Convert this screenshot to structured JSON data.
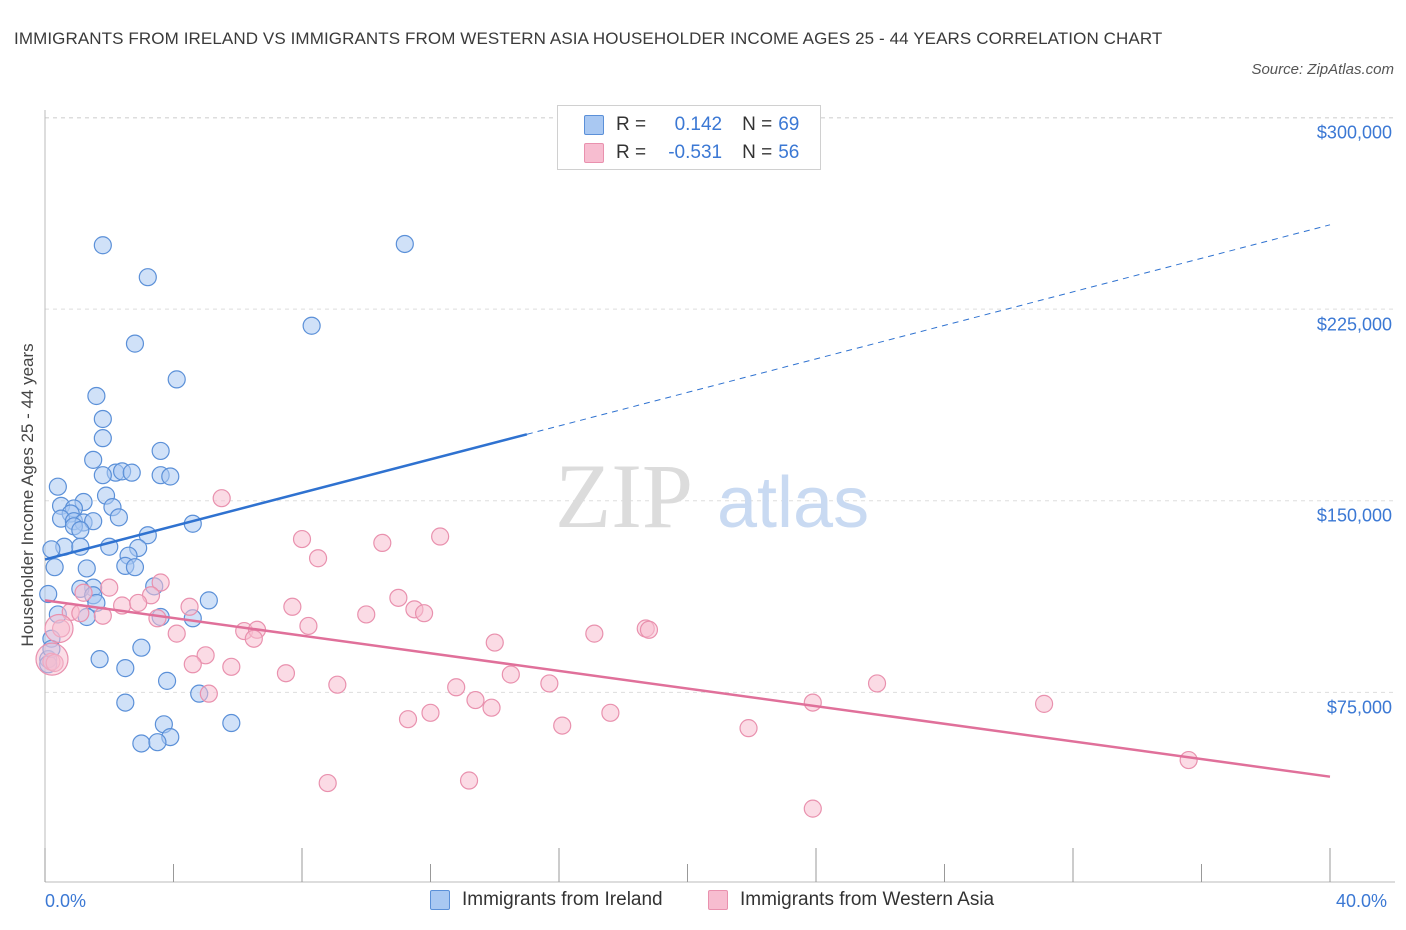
{
  "title": "IMMIGRANTS FROM IRELAND VS IMMIGRANTS FROM WESTERN ASIA HOUSEHOLDER INCOME AGES 25 - 44 YEARS CORRELATION CHART",
  "source": "Source: ZipAtlas.com",
  "watermark": {
    "zip": "ZIP",
    "atlas": "atlas"
  },
  "colors": {
    "blue_fill": "#a9c8f2",
    "blue_stroke": "#5b90d8",
    "blue_line": "#2f72d0",
    "pink_fill": "#f7bdd0",
    "pink_stroke": "#e991ae",
    "pink_line": "#e0709a",
    "accent_text": "#3b78d4",
    "grid": "#dddddd"
  },
  "legend": {
    "rows": [
      {
        "r_label": "R =",
        "r_value": "0.142",
        "n_label": "N =",
        "n_value": "69"
      },
      {
        "r_label": "R =",
        "r_value": "-0.531",
        "n_label": "N =",
        "n_value": "56"
      }
    ]
  },
  "bottom_legend": [
    "Immigrants from Ireland",
    "Immigrants from Western Asia"
  ],
  "chart_data": {
    "type": "scatter",
    "ylabel": "Householder Income Ages 25 - 44 years",
    "xlabel": "",
    "x_tick_labels": [
      "0.0%",
      "40.0%"
    ],
    "y_tick_labels": [
      "$300,000",
      "$225,000",
      "$150,000",
      "$75,000"
    ],
    "y_ticks": [
      300000,
      225000,
      150000,
      75000
    ],
    "xlim": [
      0,
      40
    ],
    "ylim": [
      0,
      305000
    ],
    "grid": true,
    "legend_position": "top-center",
    "series": [
      {
        "name": "Immigrants from Ireland",
        "color": "#a9c8f2",
        "trend": {
          "x": [
            0.0,
            15.0
          ],
          "y": [
            127000,
            176000
          ],
          "dashed_to": [
            40.0,
            258000
          ]
        },
        "points": [
          [
            1.8,
            250000
          ],
          [
            11.2,
            250500
          ],
          [
            3.2,
            237500
          ],
          [
            2.8,
            211500
          ],
          [
            8.3,
            218500
          ],
          [
            4.1,
            197500
          ],
          [
            1.6,
            191000
          ],
          [
            1.8,
            182000
          ],
          [
            1.8,
            174500
          ],
          [
            3.6,
            169500
          ],
          [
            1.5,
            166000
          ],
          [
            2.2,
            161000
          ],
          [
            2.4,
            161500
          ],
          [
            2.7,
            161000
          ],
          [
            3.6,
            160000
          ],
          [
            3.9,
            159500
          ],
          [
            1.8,
            160000
          ],
          [
            0.4,
            155500
          ],
          [
            1.9,
            152000
          ],
          [
            1.2,
            149500
          ],
          [
            0.5,
            148000
          ],
          [
            0.9,
            147000
          ],
          [
            2.1,
            147500
          ],
          [
            0.8,
            145000
          ],
          [
            2.3,
            143500
          ],
          [
            0.5,
            143000
          ],
          [
            0.9,
            142000
          ],
          [
            1.2,
            141500
          ],
          [
            1.5,
            142000
          ],
          [
            0.9,
            140000
          ],
          [
            1.1,
            138500
          ],
          [
            4.6,
            141000
          ],
          [
            3.2,
            136500
          ],
          [
            0.6,
            132000
          ],
          [
            1.1,
            132000
          ],
          [
            0.2,
            131000
          ],
          [
            2.0,
            132000
          ],
          [
            2.9,
            131500
          ],
          [
            2.6,
            128500
          ],
          [
            0.3,
            124000
          ],
          [
            1.3,
            123500
          ],
          [
            2.5,
            124500
          ],
          [
            2.8,
            124000
          ],
          [
            1.5,
            116000
          ],
          [
            3.4,
            116500
          ],
          [
            1.1,
            115500
          ],
          [
            0.1,
            113500
          ],
          [
            1.5,
            113000
          ],
          [
            1.6,
            110000
          ],
          [
            5.1,
            111000
          ],
          [
            0.4,
            105500
          ],
          [
            1.3,
            104500
          ],
          [
            3.6,
            104500
          ],
          [
            4.6,
            104000
          ],
          [
            0.2,
            96000
          ],
          [
            3.0,
            92500
          ],
          [
            0.1,
            88000
          ],
          [
            1.7,
            88000
          ],
          [
            2.5,
            84500
          ],
          [
            3.8,
            79500
          ],
          [
            4.8,
            74500
          ],
          [
            2.5,
            71000
          ],
          [
            3.7,
            62500
          ],
          [
            5.8,
            63000
          ],
          [
            3.9,
            57500
          ],
          [
            3.0,
            55000
          ],
          [
            3.5,
            55500
          ],
          [
            0.1,
            86000
          ],
          [
            0.2,
            92000
          ]
        ]
      },
      {
        "name": "Immigrants from Western Asia",
        "color": "#f7bdd0",
        "trend": {
          "x": [
            0.0,
            40.0
          ],
          "y": [
            111000,
            42000
          ]
        },
        "points": [
          [
            5.5,
            151000
          ],
          [
            8.0,
            135000
          ],
          [
            10.5,
            133500
          ],
          [
            12.3,
            136000
          ],
          [
            8.5,
            127500
          ],
          [
            3.6,
            118000
          ],
          [
            2.0,
            116000
          ],
          [
            1.2,
            114000
          ],
          [
            3.3,
            113000
          ],
          [
            11.0,
            112000
          ],
          [
            2.4,
            109000
          ],
          [
            2.9,
            110000
          ],
          [
            4.5,
            108500
          ],
          [
            7.7,
            108500
          ],
          [
            11.5,
            107500
          ],
          [
            0.8,
            106500
          ],
          [
            1.1,
            106000
          ],
          [
            1.8,
            105000
          ],
          [
            3.5,
            104000
          ],
          [
            10.0,
            105500
          ],
          [
            11.8,
            106000
          ],
          [
            8.2,
            101000
          ],
          [
            6.2,
            99000
          ],
          [
            6.6,
            99500
          ],
          [
            4.1,
            98000
          ],
          [
            6.5,
            96000
          ],
          [
            0.5,
            100000
          ],
          [
            17.1,
            98000
          ],
          [
            18.7,
            100000
          ],
          [
            18.8,
            99500
          ],
          [
            14.0,
            94500
          ],
          [
            0.2,
            87000
          ],
          [
            5.0,
            89500
          ],
          [
            4.6,
            86000
          ],
          [
            5.8,
            85000
          ],
          [
            7.5,
            82500
          ],
          [
            14.5,
            82000
          ],
          [
            9.1,
            78000
          ],
          [
            12.8,
            77000
          ],
          [
            15.7,
            78500
          ],
          [
            25.9,
            78500
          ],
          [
            13.4,
            72000
          ],
          [
            13.9,
            69000
          ],
          [
            5.1,
            74500
          ],
          [
            23.9,
            71000
          ],
          [
            31.1,
            70500
          ],
          [
            11.3,
            64500
          ],
          [
            12.0,
            67000
          ],
          [
            16.1,
            62000
          ],
          [
            17.6,
            67000
          ],
          [
            21.9,
            61000
          ],
          [
            35.6,
            48500
          ],
          [
            8.8,
            39500
          ],
          [
            13.2,
            40500
          ],
          [
            23.9,
            29500
          ],
          [
            0.3,
            86500
          ]
        ]
      }
    ]
  }
}
